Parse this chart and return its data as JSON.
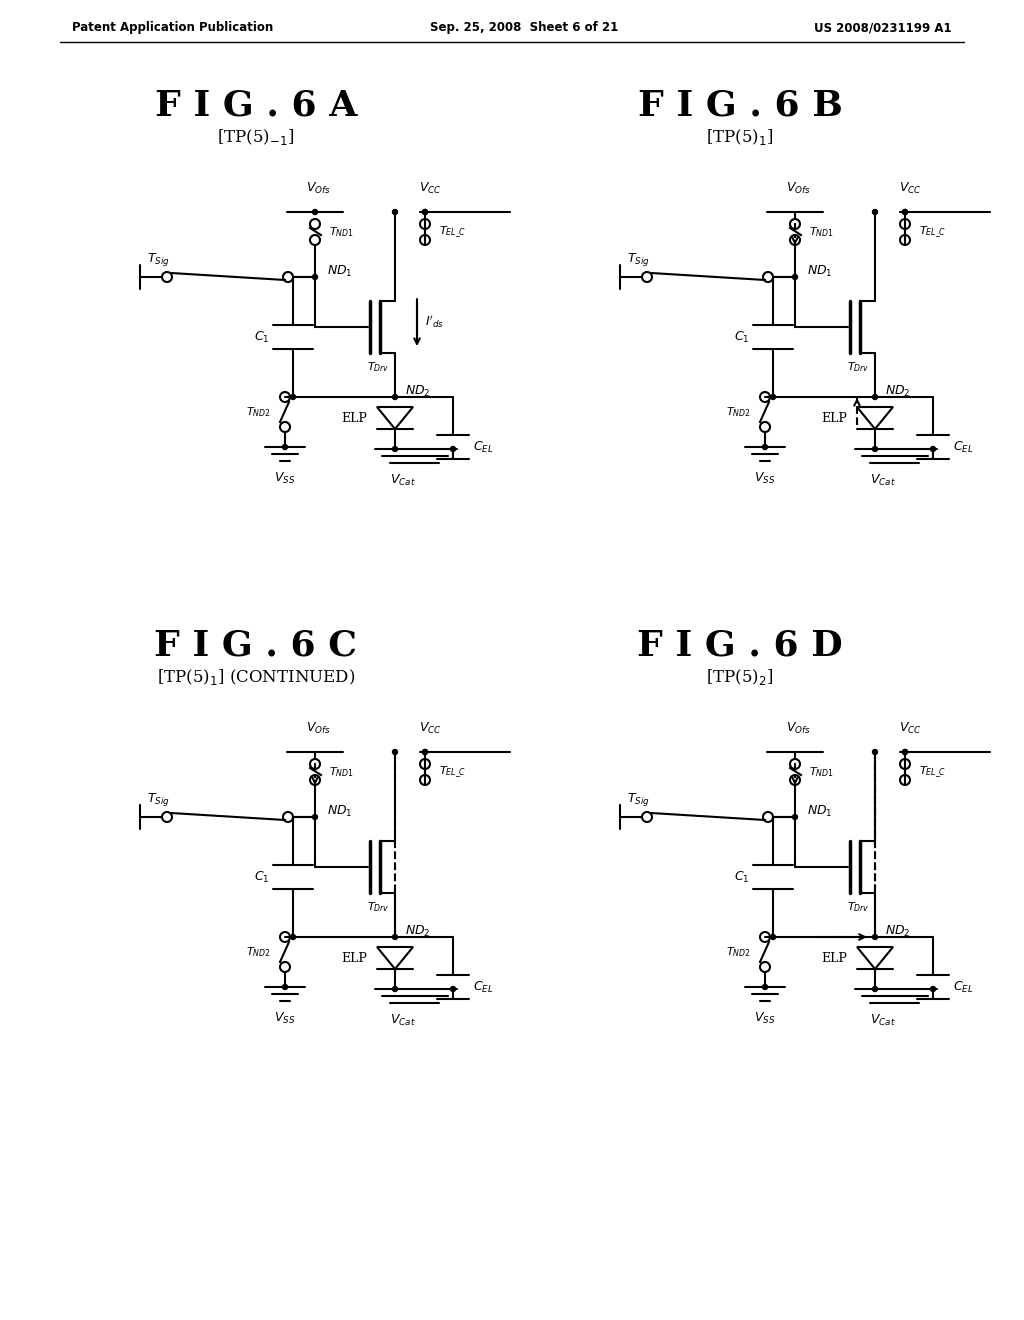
{
  "header_left": "Patent Application Publication",
  "header_center": "Sep. 25, 2008  Sheet 6 of 21",
  "header_right": "US 2008/0231199 A1",
  "bg_color": "#ffffff"
}
